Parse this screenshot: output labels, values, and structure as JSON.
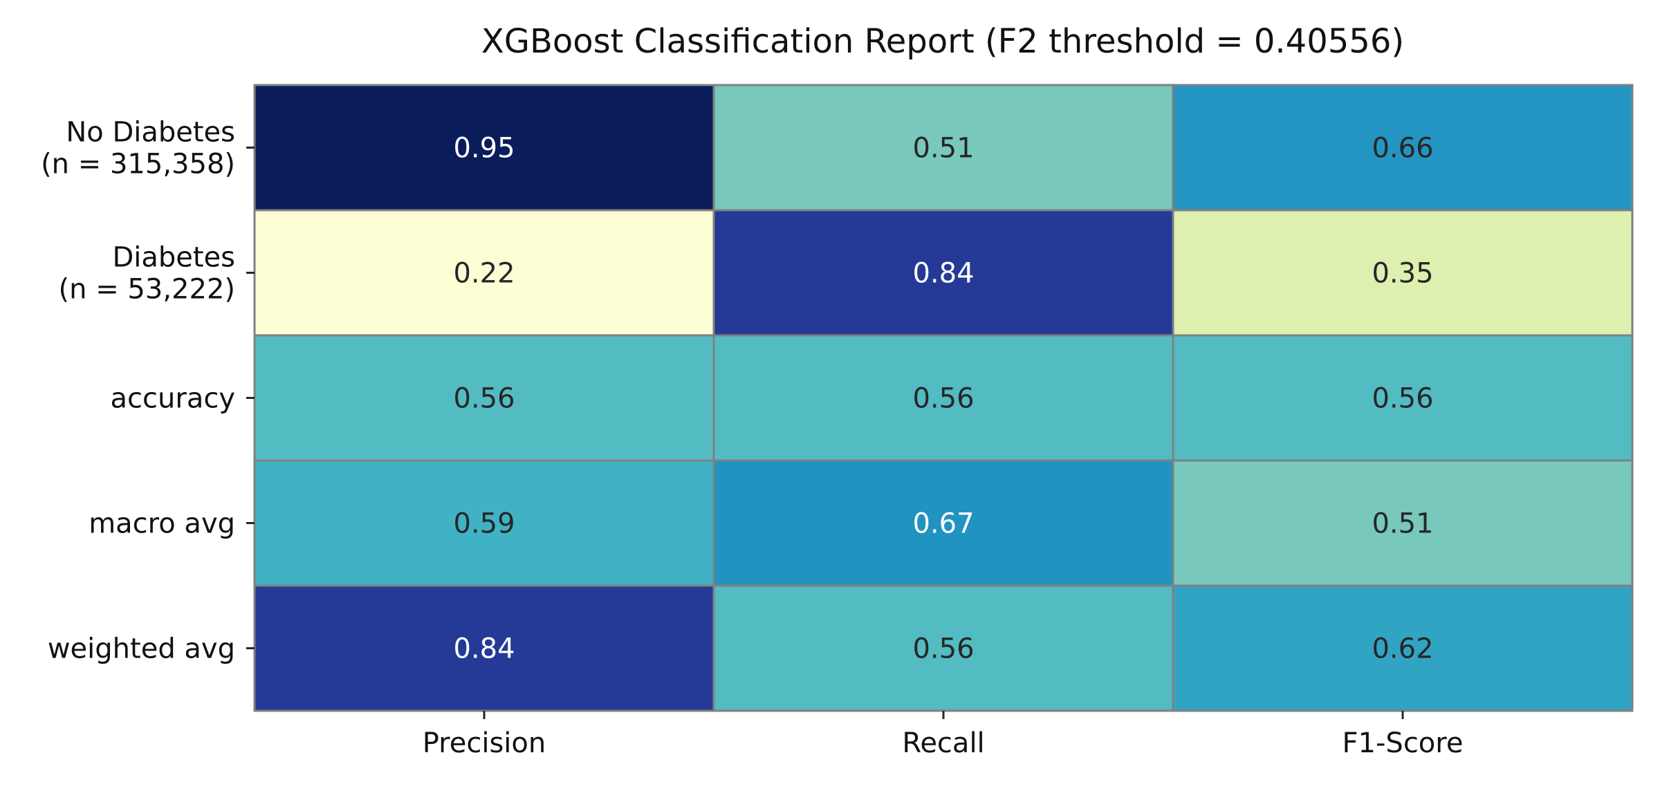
{
  "chart_data": {
    "type": "heatmap",
    "title": "XGBoost Classification Report (F2 threshold = 0.40556)",
    "xlabel": "",
    "ylabel": "",
    "x_categories": [
      "Precision",
      "Recall",
      "F1-Score"
    ],
    "y_categories": [
      [
        "No Diabetes",
        "(n = 315,358)"
      ],
      [
        "Diabetes",
        "(n = 53,222)"
      ],
      [
        "accuracy"
      ],
      [
        "macro avg"
      ],
      [
        "weighted avg"
      ]
    ],
    "values": [
      [
        0.95,
        0.51,
        0.66
      ],
      [
        0.22,
        0.84,
        0.35
      ],
      [
        0.56,
        0.56,
        0.56
      ],
      [
        0.59,
        0.67,
        0.51
      ],
      [
        0.84,
        0.56,
        0.62
      ]
    ],
    "value_labels": [
      [
        "0.95",
        "0.51",
        "0.66"
      ],
      [
        "0.22",
        "0.84",
        "0.35"
      ],
      [
        "0.56",
        "0.56",
        "0.56"
      ],
      [
        "0.59",
        "0.67",
        "0.51"
      ],
      [
        "0.84",
        "0.56",
        "0.62"
      ]
    ],
    "cell_colors": [
      [
        "#0a1c59",
        "#78c9bb",
        "#2495c2"
      ],
      [
        "#fefed6",
        "#243a96",
        "#ddf0b0"
      ],
      [
        "#53bbc2",
        "#53bbc2",
        "#53bbc2"
      ],
      [
        "#3fb2c5",
        "#2093c1",
        "#78c9bb"
      ],
      [
        "#243a96",
        "#53bbc2",
        "#32a4c3"
      ]
    ],
    "colormap": "YlGnBu",
    "colorbar": false,
    "grid": false,
    "cell_border_color": "#808080",
    "text_dark_color": "#262626",
    "text_light_color": "#ffffff"
  }
}
